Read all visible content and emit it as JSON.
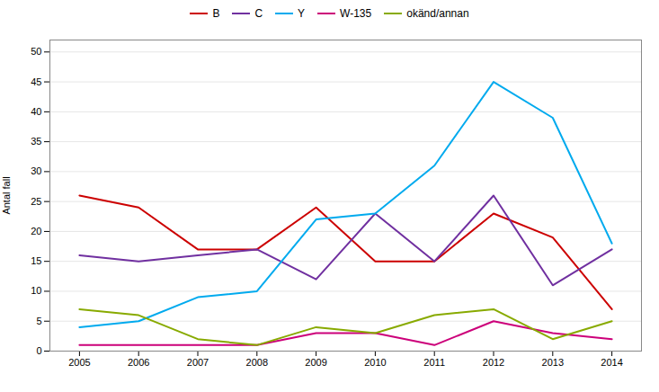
{
  "chart_data": {
    "type": "line",
    "ylabel": "Antal fall",
    "x": [
      2005,
      2006,
      2007,
      2008,
      2009,
      2010,
      2011,
      2012,
      2013,
      2014
    ],
    "series": [
      {
        "name": "B",
        "color": "#cc0000",
        "values": [
          26,
          24,
          17,
          17,
          24,
          15,
          15,
          23,
          19,
          7
        ]
      },
      {
        "name": "C",
        "color": "#7030a0",
        "values": [
          16,
          15,
          16,
          17,
          12,
          23,
          15,
          26,
          11,
          17
        ]
      },
      {
        "name": "Y",
        "color": "#00aaee",
        "values": [
          4,
          5,
          9,
          10,
          22,
          23,
          31,
          45,
          39,
          18
        ]
      },
      {
        "name": "W-135",
        "color": "#cc007a",
        "values": [
          1,
          1,
          1,
          1,
          3,
          3,
          1,
          5,
          3,
          2
        ]
      },
      {
        "name": "okänd/annan",
        "color": "#88aa00",
        "values": [
          7,
          6,
          2,
          1,
          4,
          3,
          6,
          7,
          2,
          5
        ]
      }
    ],
    "xlim": [
      2004.5,
      2014.5
    ],
    "xticks": [
      2005,
      2006,
      2007,
      2008,
      2009,
      2010,
      2011,
      2012,
      2013,
      2014
    ],
    "ylim": [
      0,
      52
    ],
    "yticks": [
      0,
      5,
      10,
      15,
      20,
      25,
      30,
      35,
      40,
      45,
      50
    ],
    "grid": true,
    "legend": "top"
  }
}
